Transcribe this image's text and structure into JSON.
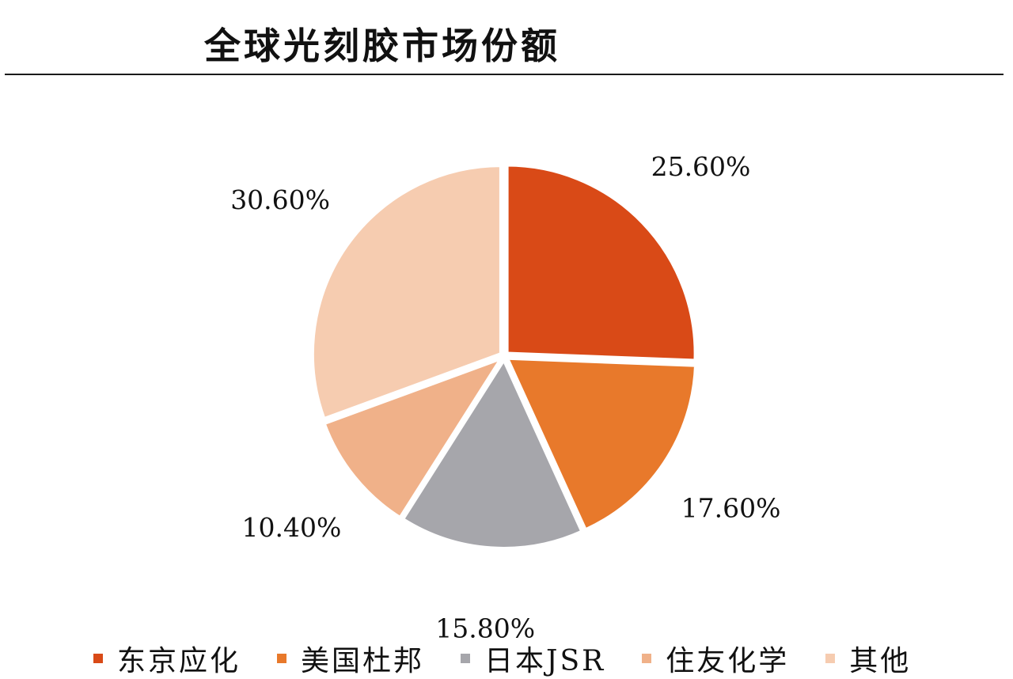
{
  "title": "全球光刻胶市场份额",
  "chart_data": {
    "type": "pie",
    "title": "全球光刻胶市场份额",
    "unit": "%",
    "legend_position": "bottom",
    "slices": [
      {
        "name": "东京应化",
        "value": 25.6,
        "label": "25.60%",
        "color": "#d94a17"
      },
      {
        "name": "美国杜邦",
        "value": 17.6,
        "label": "17.60%",
        "color": "#e8792b"
      },
      {
        "name": "日本JSR",
        "value": 15.8,
        "label": "15.80%",
        "color": "#a6a6ab"
      },
      {
        "name": "住友化学",
        "value": 10.4,
        "label": "10.40%",
        "color": "#f0b189"
      },
      {
        "name": "其他",
        "value": 30.6,
        "label": "30.60%",
        "color": "#f6ccb0"
      }
    ]
  }
}
